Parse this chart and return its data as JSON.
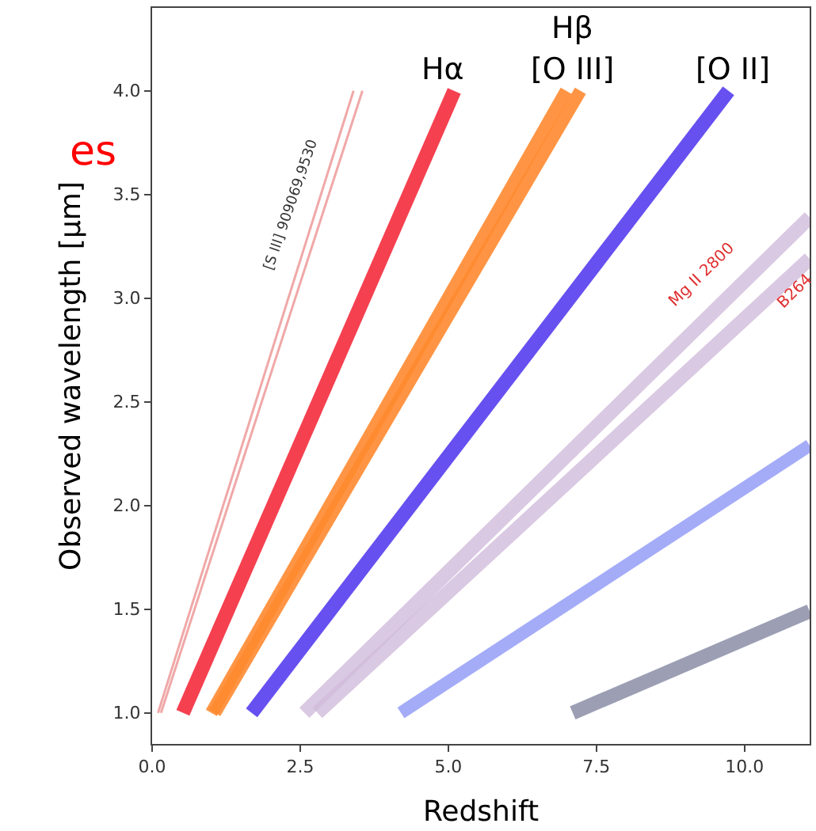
{
  "chart_data": {
    "type": "line",
    "xlabel": "Redshift",
    "ylabel": "Observed wavelength [µm]",
    "xlim": [
      0,
      11.1
    ],
    "ylim": [
      0.85,
      4.4
    ],
    "xticks": [
      {
        "value": 0,
        "label": "0.0"
      },
      {
        "value": 2.5,
        "label": "2.5"
      },
      {
        "value": 5,
        "label": "5.0"
      },
      {
        "value": 7.5,
        "label": "7.5"
      },
      {
        "value": 10,
        "label": "10.0"
      }
    ],
    "yticks": [
      {
        "value": 1,
        "label": "1.0"
      },
      {
        "value": 1.5,
        "label": "1.5"
      },
      {
        "value": 2,
        "label": "2.0"
      },
      {
        "value": 2.5,
        "label": "2.5"
      },
      {
        "value": 3,
        "label": "3.0"
      },
      {
        "value": 3.5,
        "label": "3.5"
      },
      {
        "value": 4,
        "label": "4.0"
      }
    ],
    "marker": "none",
    "line_style": "solid",
    "series": [
      {
        "color": "#f0a8a8",
        "x": [
          0.1,
          3.4
        ],
        "values": [
          1.0,
          4.0
        ]
      },
      {
        "color": "#f0a8a8",
        "x": [
          0.15,
          3.55
        ],
        "values": [
          1.0,
          4.0
        ]
      },
      {
        "color": "#f54050",
        "x": [
          0.52,
          5.1
        ],
        "values": [
          1.0,
          4.0
        ]
      },
      {
        "color": "#ff8a30",
        "x": [
          1.06,
          7.23
        ],
        "values": [
          1.0,
          4.0
        ]
      },
      {
        "color": "#ff8a30",
        "x": [
          1.0,
          6.99
        ],
        "values": [
          1.0,
          4.0
        ]
      },
      {
        "color": "#6650f0",
        "x": [
          1.68,
          9.73
        ],
        "values": [
          1.0,
          4.0
        ]
      },
      {
        "color": "#d2bcdc",
        "x": [
          2.57,
          11.1
        ],
        "values": [
          1.0,
          3.39
        ]
      },
      {
        "color": "#d2bcdc",
        "x": [
          2.79,
          11.1
        ],
        "values": [
          1.0,
          3.19
        ]
      },
      {
        "color": "#a4acf8",
        "x": [
          4.2,
          11.1
        ],
        "values": [
          1.0,
          2.29
        ]
      },
      {
        "color": "#9c9eb4",
        "x": [
          7.1,
          11.1
        ],
        "values": [
          1.0,
          1.49
        ]
      }
    ],
    "annotations": [
      "Hα",
      "Hβ",
      "[O III]",
      "[O II]",
      "[S III] 909069,9530",
      "Mg II 2800",
      "B264",
      "es"
    ]
  }
}
